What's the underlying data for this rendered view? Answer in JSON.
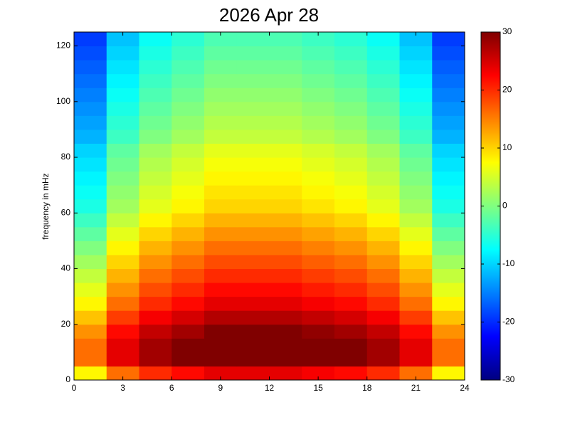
{
  "chart_data": {
    "type": "heatmap",
    "title": "2026 Apr 28",
    "y_label": "frequency in mHz",
    "colormap": "jet",
    "xbins": [
      0,
      2,
      4,
      6,
      8,
      10,
      12,
      14,
      16,
      18,
      20,
      22,
      24
    ],
    "ybins": [
      0,
      5,
      10,
      15,
      20,
      25,
      30,
      35,
      40,
      45,
      50,
      55,
      60,
      65,
      70,
      75,
      80,
      85,
      90,
      95,
      100,
      105,
      110,
      115,
      120,
      125
    ],
    "values": [
      [
        8,
        16,
        20,
        22,
        24,
        24,
        24,
        23,
        22,
        20,
        16,
        8
      ],
      [
        16,
        24,
        28,
        30,
        30,
        30,
        30,
        30,
        30,
        28,
        24,
        16
      ],
      [
        16,
        24,
        28,
        30,
        30,
        30,
        30,
        30,
        30,
        28,
        24,
        16
      ],
      [
        14,
        22,
        26,
        28,
        30,
        30,
        30,
        29,
        28,
        26,
        22,
        14
      ],
      [
        11,
        19,
        23,
        25,
        27,
        27,
        27,
        26,
        25,
        23,
        19,
        11
      ],
      [
        8,
        16,
        20,
        22,
        24,
        24,
        24,
        23,
        22,
        20,
        16,
        8
      ],
      [
        6,
        14,
        18,
        20,
        22,
        22,
        22,
        21,
        20,
        18,
        14,
        6
      ],
      [
        4,
        12,
        16,
        18,
        20,
        20,
        20,
        19,
        18,
        16,
        12,
        4
      ],
      [
        2,
        10,
        14,
        16,
        18,
        18,
        18,
        17,
        16,
        14,
        10,
        2
      ],
      [
        0,
        8,
        12,
        14,
        16,
        16,
        16,
        15,
        14,
        12,
        8,
        0
      ],
      [
        -2,
        6,
        10,
        12,
        14,
        14,
        14,
        13,
        12,
        10,
        6,
        -2
      ],
      [
        -4,
        4,
        8,
        10,
        12,
        12,
        12,
        11,
        10,
        8,
        4,
        -4
      ],
      [
        -6,
        2,
        6,
        8,
        10,
        10,
        10,
        9,
        8,
        6,
        2,
        -6
      ],
      [
        -7,
        1,
        5,
        7,
        9,
        9,
        9,
        8,
        7,
        5,
        1,
        -7
      ],
      [
        -8,
        0,
        4,
        6,
        8,
        8,
        8,
        7,
        6,
        4,
        0,
        -8
      ],
      [
        -9,
        -1,
        3,
        5,
        7,
        7,
        7,
        6,
        5,
        3,
        -1,
        -9
      ],
      [
        -10,
        -2,
        2,
        4,
        6,
        6,
        6,
        5,
        4,
        2,
        -2,
        -10
      ],
      [
        -12,
        -4,
        0,
        2,
        4,
        4,
        4,
        3,
        2,
        0,
        -4,
        -12
      ],
      [
        -13,
        -5,
        -1,
        1,
        3,
        3,
        3,
        2,
        1,
        -1,
        -5,
        -13
      ],
      [
        -14,
        -6,
        -2,
        0,
        2,
        2,
        2,
        1,
        0,
        -2,
        -6,
        -14
      ],
      [
        -15,
        -7,
        -3,
        -1,
        1,
        1,
        1,
        0,
        -1,
        -3,
        -7,
        -15
      ],
      [
        -16,
        -8,
        -4,
        -2,
        0,
        0,
        0,
        -1,
        -2,
        -4,
        -8,
        -16
      ],
      [
        -17,
        -9,
        -5,
        -3,
        -1,
        -1,
        -1,
        -2,
        -3,
        -5,
        -9,
        -17
      ],
      [
        -18,
        -10,
        -6,
        -4,
        -2,
        -2,
        -2,
        -3,
        -4,
        -6,
        -10,
        -18
      ],
      [
        -19,
        -11,
        -7,
        -5,
        -3,
        -3,
        -3,
        -4,
        -5,
        -7,
        -11,
        -19
      ]
    ],
    "xlim": [
      0,
      24
    ],
    "xticks": [
      0,
      3,
      6,
      9,
      12,
      15,
      18,
      21,
      24
    ],
    "ylim": [
      0,
      125
    ],
    "yticks": [
      0,
      20,
      40,
      60,
      80,
      100,
      120
    ],
    "clim": [
      -30,
      30
    ],
    "cticks": [
      -30,
      -20,
      -10,
      0,
      10,
      20,
      30
    ]
  }
}
